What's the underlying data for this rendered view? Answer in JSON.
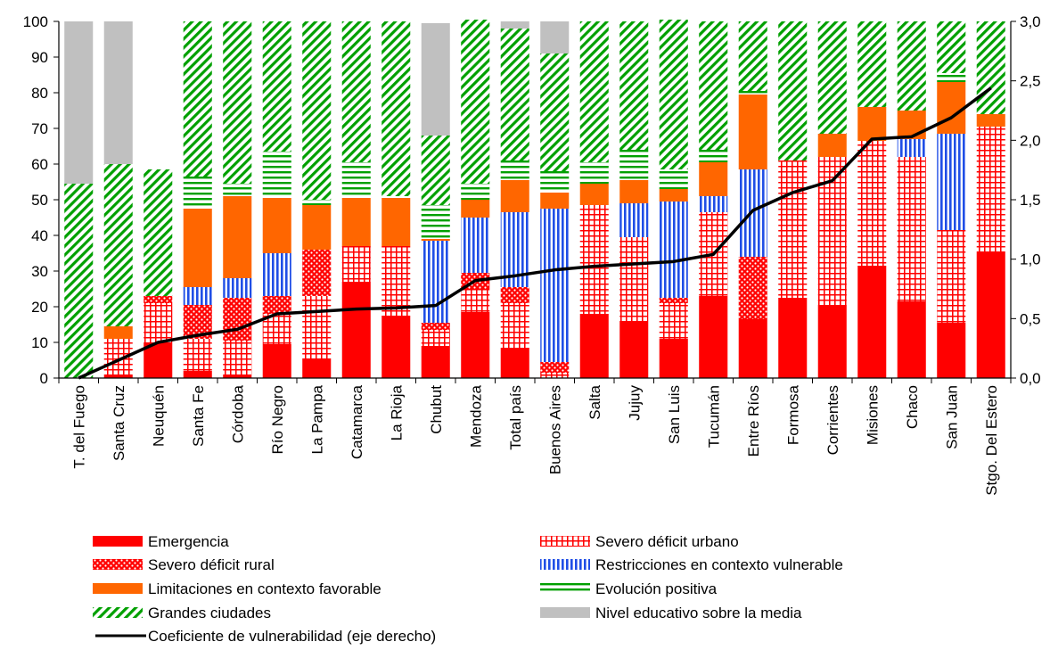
{
  "chart_data": {
    "type": "bar",
    "stacked": true,
    "title": "",
    "xlabel": "",
    "ylabel": "",
    "ylabel_right": "",
    "ylim": [
      0,
      100
    ],
    "ylim_right": [
      0,
      3.0
    ],
    "y_ticks": [
      "0",
      "10",
      "20",
      "30",
      "40",
      "50",
      "60",
      "70",
      "80",
      "90",
      "100"
    ],
    "y_ticks_right": [
      "0,0",
      "0,5",
      "1,0",
      "1,5",
      "2,0",
      "2,5",
      "3,0"
    ],
    "grid": false,
    "legend_position": "bottom",
    "categories": [
      "T. del Fuego",
      "Santa Cruz",
      "Neuquén",
      "Santa Fe",
      "Córdoba",
      "Río Negro",
      "La Pampa",
      "Catamarca",
      "La Rioja",
      "Chubut",
      "Mendoza",
      "Total país",
      "Buenos Aires",
      "Salta",
      "Jujuy",
      "San Luis",
      "Tucumán",
      "Entre Ríos",
      "Formosa",
      "Corrientes",
      "Misiones",
      "Chaco",
      "San Juan",
      "Stgo. Del Estero"
    ],
    "series": [
      {
        "name": "Emergencia",
        "key": "emergencia",
        "color": "#ff0000",
        "pattern": "solid",
        "values": [
          0,
          1,
          10,
          2,
          1,
          9.5,
          5.5,
          27,
          17.5,
          9,
          18.5,
          8.5,
          0,
          18,
          16,
          11,
          23,
          16.5,
          22.5,
          20.5,
          31.5,
          21.5,
          15.5,
          35.5
        ]
      },
      {
        "name": "Severo déficit urbano",
        "key": "sev_urbano",
        "color": "#ff0000",
        "pattern": "grid",
        "values": [
          0,
          10,
          11,
          9,
          9.5,
          8.5,
          17.5,
          10,
          19.5,
          4.5,
          6.5,
          12.5,
          1.5,
          30.5,
          23.5,
          10,
          23.5,
          0,
          38.5,
          41.5,
          35,
          40.5,
          26,
          35
        ]
      },
      {
        "name": "Severo déficit rural",
        "key": "sev_rural",
        "color": "#ff0000",
        "pattern": "dots",
        "values": [
          0,
          0,
          2,
          9.5,
          12,
          5,
          13,
          0,
          0,
          2,
          4.5,
          4.5,
          3,
          0,
          0,
          1.5,
          0,
          17.5,
          0,
          0,
          0,
          0,
          0,
          0
        ]
      },
      {
        "name": "Restricciones en contexto vulnerable",
        "key": "restricciones",
        "color": "#1f4ee6",
        "pattern": "vlines",
        "values": [
          0,
          0,
          0,
          5,
          5.5,
          12,
          0,
          0,
          0,
          23,
          15.5,
          21,
          43,
          0,
          9.5,
          27,
          4.5,
          24.5,
          0,
          0,
          0,
          5,
          27,
          0
        ]
      },
      {
        "name": "Limitaciones en contexto favorable",
        "key": "limitaciones",
        "color": "#ff6600",
        "pattern": "solid",
        "values": [
          0,
          3.5,
          0,
          22,
          23,
          15.5,
          12.5,
          13.5,
          13.5,
          0.5,
          5,
          9,
          4.5,
          6,
          6.5,
          3.5,
          9.5,
          21,
          0,
          6.5,
          9.5,
          8,
          14.5,
          3.5
        ]
      },
      {
        "name": "Evolución positiva",
        "key": "evolucion",
        "color": "#00a000",
        "pattern": "hlines",
        "values": [
          0,
          0,
          0,
          9,
          3.5,
          13,
          1.5,
          10,
          0.5,
          9.5,
          4.5,
          5.5,
          6,
          6,
          8.5,
          5.5,
          3.5,
          1,
          0,
          0,
          0,
          0,
          2.5,
          0
        ]
      },
      {
        "name": "Grandes ciudades",
        "key": "grandes",
        "color": "#00a000",
        "pattern": "diag",
        "values": [
          54.5,
          45.5,
          35.5,
          43.5,
          45.5,
          36.5,
          50,
          39.5,
          49,
          19.5,
          46,
          37,
          33,
          39.5,
          36,
          42,
          36,
          19.5,
          39,
          31.5,
          24,
          25,
          14.5,
          26
        ]
      },
      {
        "name": "Nivel educativo sobre la media",
        "key": "nivel",
        "color": "#c0c0c0",
        "pattern": "solid",
        "values": [
          45.5,
          40,
          0,
          0,
          0,
          0,
          0,
          0,
          0,
          31.5,
          0,
          2,
          9,
          0,
          0,
          0,
          0,
          0,
          0,
          0,
          0,
          0,
          0,
          0
        ]
      }
    ],
    "line": {
      "name": "Coeficiente de vulnerabilidad (eje derecho)",
      "axis": "right",
      "color": "#000000",
      "values": [
        0.0,
        0.15,
        0.3,
        0.36,
        0.41,
        0.54,
        0.56,
        0.58,
        0.59,
        0.61,
        0.82,
        0.86,
        0.91,
        0.94,
        0.96,
        0.98,
        1.04,
        1.41,
        1.56,
        1.66,
        2.01,
        2.03,
        2.19,
        2.44
      ]
    },
    "legend": {
      "left": [
        "Emergencia",
        "Severo déficit rural",
        "Limitaciones en contexto favorable",
        "Grandes ciudades",
        "Coeficiente de vulnerabilidad (eje derecho)"
      ],
      "right": [
        "Severo déficit urbano",
        "Restricciones en contexto vulnerable",
        "Evolución positiva",
        "Nivel educativo sobre la media"
      ]
    }
  }
}
